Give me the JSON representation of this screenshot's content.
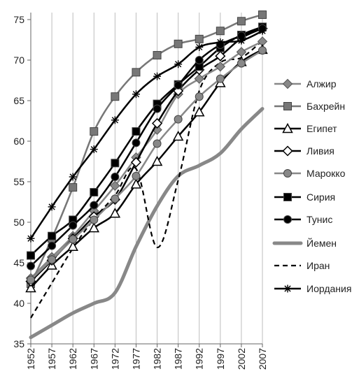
{
  "chart_data": {
    "type": "line",
    "title": "",
    "xlabel": "",
    "ylabel": "",
    "x": [
      1952,
      1957,
      1962,
      1967,
      1972,
      1977,
      1982,
      1987,
      1992,
      1997,
      2002,
      2007
    ],
    "ylim": [
      35,
      75
    ],
    "yticks": [
      35,
      40,
      45,
      50,
      55,
      60,
      65,
      70,
      75
    ],
    "grid": "vertical",
    "legend_position": "right",
    "series": [
      {
        "name": "Алжир",
        "values": [
          43.1,
          45.7,
          48.3,
          51.4,
          54.5,
          58.0,
          61.4,
          65.8,
          67.7,
          69.2,
          71.0,
          72.3
        ],
        "color": "#888888",
        "marker": "diamond",
        "linestyle": "solid"
      },
      {
        "name": "Бахрейн",
        "values": [
          42.4,
          48.0,
          54.3,
          61.2,
          65.5,
          68.5,
          70.6,
          72.0,
          72.6,
          73.6,
          74.8,
          75.6
        ],
        "color": "#777777",
        "marker": "square",
        "linestyle": "solid"
      },
      {
        "name": "Египет",
        "values": [
          41.9,
          44.7,
          47.0,
          49.3,
          51.1,
          54.7,
          57.5,
          60.6,
          63.6,
          67.2,
          69.8,
          71.3
        ],
        "color": "#000000",
        "marker": "triangle-open",
        "linestyle": "solid"
      },
      {
        "name": "Ливия",
        "values": [
          42.7,
          45.3,
          48.0,
          50.7,
          52.8,
          57.4,
          62.2,
          66.2,
          68.8,
          70.5,
          72.7,
          73.9
        ],
        "color": "#000000",
        "marker": "diamond-open",
        "linestyle": "solid"
      },
      {
        "name": "Марокко",
        "values": [
          42.9,
          45.4,
          47.9,
          50.3,
          52.9,
          55.7,
          59.7,
          62.7,
          65.5,
          67.7,
          69.6,
          71.2
        ],
        "color": "#888888",
        "marker": "circle",
        "linestyle": "solid"
      },
      {
        "name": "Сирия",
        "values": [
          45.9,
          48.3,
          50.3,
          53.7,
          57.3,
          61.2,
          64.6,
          67.0,
          69.2,
          71.5,
          73.1,
          74.1
        ],
        "color": "#000000",
        "marker": "square",
        "linestyle": "solid"
      },
      {
        "name": "Тунис",
        "values": [
          44.6,
          47.1,
          49.6,
          52.1,
          55.6,
          59.8,
          64.0,
          66.9,
          70.0,
          71.9,
          73.0,
          73.9
        ],
        "color": "#000000",
        "marker": "circle",
        "linestyle": "solid"
      },
      {
        "name": "Йемен",
        "values": [
          35.8,
          37.3,
          38.8,
          40.0,
          41.3,
          47.0,
          52.0,
          55.7,
          57.0,
          58.5,
          61.5,
          64.0
        ],
        "color": "#888888",
        "marker": "none",
        "linestyle": "thick"
      },
      {
        "name": "Иран",
        "values": [
          38.2,
          42.5,
          46.8,
          50.4,
          53.3,
          56.6,
          46.9,
          55.2,
          66.2,
          69.7,
          70.3,
          72.4
        ],
        "color": "#000000",
        "marker": "none",
        "linestyle": "dashed"
      },
      {
        "name": "Иордания",
        "values": [
          48.0,
          51.9,
          55.6,
          59.0,
          62.6,
          65.8,
          68.0,
          69.5,
          71.6,
          72.2,
          72.4,
          73.6
        ],
        "color": "#000000",
        "marker": "star",
        "linestyle": "solid"
      }
    ]
  }
}
